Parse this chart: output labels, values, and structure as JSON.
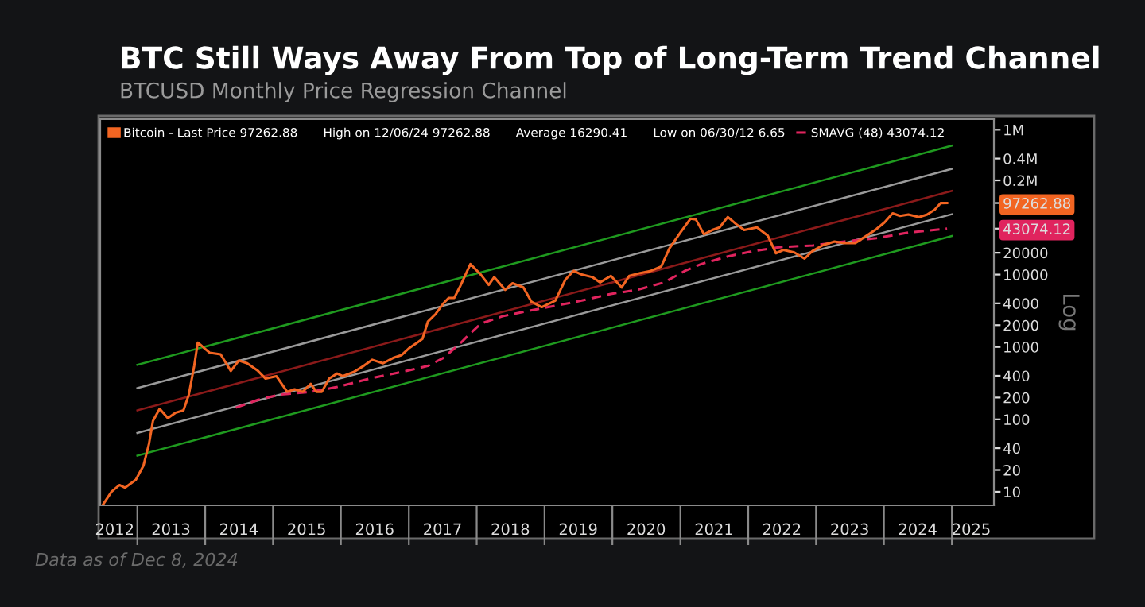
{
  "chart_data": {
    "type": "line",
    "title": "BTC Still Ways Away From Top of Long-Term Trend Channel",
    "subtitle": "BTCUSD Monthly Price Regression Channel",
    "ylabel": "Log",
    "log": true,
    "ylim": [
      6.5,
      1400000
    ],
    "yticks": [
      10,
      20,
      40,
      100,
      200,
      400,
      1000,
      2000,
      4000,
      10000,
      20000,
      {
        "value": 200000,
        "label": "0.2M"
      },
      {
        "value": 400000,
        "label": "0.4M"
      },
      {
        "value": 1000000,
        "label": "1M"
      },
      {
        "value": 97262.88,
        "label": "97262.88"
      },
      {
        "value": 43074.12,
        "label": "43074.12"
      }
    ],
    "xlim": [
      "2012-06-15",
      "2025-08-15"
    ],
    "xticks": [
      {
        "value": "2012-09-01",
        "label": "2012"
      },
      {
        "value": "2013-07-01",
        "label": "2013"
      },
      {
        "value": "2014-07-01",
        "label": "2014"
      },
      {
        "value": "2015-07-01",
        "label": "2015"
      },
      {
        "value": "2016-07-01",
        "label": "2016"
      },
      {
        "value": "2017-07-01",
        "label": "2017"
      },
      {
        "value": "2018-07-01",
        "label": "2018"
      },
      {
        "value": "2019-07-01",
        "label": "2019"
      },
      {
        "value": "2020-07-01",
        "label": "2020"
      },
      {
        "value": "2021-07-01",
        "label": "2021"
      },
      {
        "value": "2022-07-01",
        "label": "2022"
      },
      {
        "value": "2023-07-01",
        "label": "2023"
      },
      {
        "value": "2024-07-01",
        "label": "2024"
      },
      {
        "value": "2025-04-15",
        "label": "2025"
      }
    ],
    "grid": false,
    "marker": "none",
    "legend": "top left",
    "annotations": [
      "Data as of Dec 8, 2024",
      "High on 12/06/24 97262.88",
      "Average 16290.41",
      "Low on 06/30/12 6.65"
    ],
    "series": [
      {
        "color": "#1f9a1f",
        "x": [
          "2013-01-01",
          "2024-12-31"
        ],
        "values": [
          566,
          603000
        ]
      },
      {
        "color": "#9a9a9a",
        "x": [
          "2013-01-01",
          "2024-12-31"
        ],
        "values": [
          270,
          288000
        ]
      },
      {
        "color": "#8b1a1a",
        "x": [
          "2013-01-01",
          "2024-12-31"
        ],
        "values": [
          133,
          143000
        ]
      },
      {
        "color": "#9a9a9a",
        "x": [
          "2013-01-01",
          "2024-12-31"
        ],
        "values": [
          65,
          68000
        ]
      },
      {
        "color": "#1f9a1f",
        "x": [
          "2013-01-01",
          "2024-12-31"
        ],
        "values": [
          31.5,
          34000
        ]
      },
      {
        "name": "SMAVG (48) 43074.12",
        "color": "#e0245e",
        "line_style": "dashed",
        "x": [
          "2014-06-15",
          "2014-10-12",
          "2015-02-03",
          "2015-07-23",
          "2015-12-12",
          "2016-06-03",
          "2016-12-20",
          "2017-04-13",
          "2017-07-05",
          "2017-10-01",
          "2017-11-28",
          "2018-01-23",
          "2018-05-19",
          "2018-10-08",
          "2019-02-28",
          "2019-07-20",
          "2019-12-24",
          "2020-05-15",
          "2020-10-05",
          "2021-01-26",
          "2021-04-23",
          "2021-09-13",
          "2022-02-03",
          "2022-06-25",
          "2022-12-13",
          "2023-06-03",
          "2023-11-22",
          "2024-05-12",
          "2024-12-06"
        ],
        "values": [
          145,
          186,
          219,
          240,
          280,
          365,
          467,
          547,
          705,
          1100,
          1540,
          2100,
          2650,
          3150,
          3700,
          4370,
          5400,
          6150,
          7800,
          11240,
          13960,
          17800,
          21200,
          24000,
          25200,
          28600,
          31900,
          38000,
          43074.12
        ]
      },
      {
        "name": "Bitcoin - Last Price 97262.88",
        "color": "#f26522",
        "line_style": "solid",
        "x": [
          "2012-06-30",
          "2012-08-15",
          "2012-09-27",
          "2012-10-27",
          "2012-12-24",
          "2013-02-03",
          "2013-03-04",
          "2013-03-26",
          "2013-05-01",
          "2013-06-14",
          "2013-07-24",
          "2013-09-06",
          "2013-10-05",
          "2013-11-03",
          "2013-11-22",
          "2014-01-26",
          "2014-03-25",
          "2014-05-19",
          "2014-07-01",
          "2014-08-15",
          "2014-10-12",
          "2014-11-22",
          "2015-01-19",
          "2015-03-18",
          "2015-04-27",
          "2015-06-10",
          "2015-07-23",
          "2015-08-22",
          "2015-09-20",
          "2015-10-30",
          "2015-12-12",
          "2016-01-11",
          "2016-03-10",
          "2016-05-04",
          "2016-06-18",
          "2016-08-15",
          "2016-10-08",
          "2016-11-22",
          "2017-01-05",
          "2017-02-15",
          "2017-03-15",
          "2017-04-13",
          "2017-05-26",
          "2017-07-05",
          "2017-08-04",
          "2017-09-02",
          "2017-10-01",
          "2017-11-28",
          "2018-01-23",
          "2018-03-07",
          "2018-04-05",
          "2018-06-03",
          "2018-07-13",
          "2018-09-09",
          "2018-10-23",
          "2018-12-17",
          "2019-02-28",
          "2019-04-23",
          "2019-06-06",
          "2019-07-20",
          "2019-09-16",
          "2019-10-27",
          "2019-12-24",
          "2020-02-20",
          "2020-04-01",
          "2020-05-30",
          "2020-07-26",
          "2020-09-20",
          "2020-11-03",
          "2021-01-01",
          "2021-02-24",
          "2021-03-25",
          "2021-05-08",
          "2021-06-21",
          "2021-07-31",
          "2021-09-13",
          "2021-10-27",
          "2021-12-10",
          "2022-02-17",
          "2022-04-16",
          "2022-05-30",
          "2022-07-09",
          "2022-09-06",
          "2022-10-31",
          "2022-12-13",
          "2023-02-10",
          "2023-04-10",
          "2023-06-03",
          "2023-07-31",
          "2023-09-27",
          "2023-11-22",
          "2024-01-04",
          "2024-02-17",
          "2024-03-28",
          "2024-05-12",
          "2024-07-08",
          "2024-08-21",
          "2024-10-01",
          "2024-11-01",
          "2024-12-06"
        ],
        "values": [
          6.65,
          10,
          12.4,
          11.4,
          14.7,
          23,
          45,
          95,
          140,
          104,
          123,
          133,
          219,
          547,
          1150,
          830,
          790,
          467,
          650,
          595,
          467,
          365,
          395,
          240,
          260,
          240,
          310,
          240,
          240,
          365,
          430,
          395,
          450,
          550,
          665,
          595,
          705,
          770,
          975,
          1150,
          1290,
          2230,
          2870,
          3980,
          4760,
          4760,
          6640,
          13960,
          10000,
          7200,
          9220,
          6150,
          7600,
          6640,
          4200,
          3550,
          4370,
          8500,
          11240,
          10000,
          9200,
          7800,
          9600,
          6640,
          9600,
          10500,
          11240,
          12900,
          23000,
          38000,
          59000,
          57800,
          36000,
          41200,
          44700,
          62300,
          50000,
          41200,
          44700,
          34600,
          19700,
          21900,
          20200,
          16600,
          21200,
          25700,
          28600,
          27200,
          27200,
          34000,
          42600,
          52400,
          70200,
          64600,
          67500,
          62300,
          67500,
          79000,
          97000,
          97262.88
        ]
      }
    ]
  }
}
